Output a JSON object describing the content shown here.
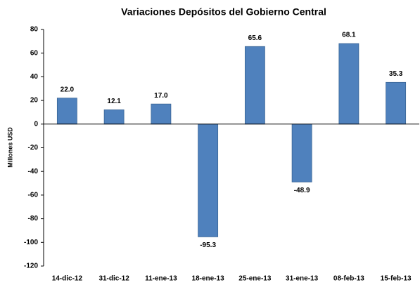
{
  "chart_data": {
    "type": "bar",
    "title": "Variaciones Depósitos del Gobierno Central",
    "y_label": "Millones USD",
    "categories": [
      "14-dic-12",
      "31-dic-12",
      "11-ene-13",
      "18-ene-13",
      "25-ene-13",
      "31-ene-13",
      "08-feb-13",
      "15-feb-13"
    ],
    "values": [
      22,
      12.1,
      17,
      -95.3,
      65.6,
      -48.9,
      68.1,
      35.3
    ],
    "value_labels": [
      "22.0",
      "12.1",
      "17.0",
      "-95.3",
      "65.6",
      "-48.9",
      "68.1",
      "35.3"
    ],
    "color": "#4f81bd",
    "ylim": [
      -120,
      80
    ],
    "yticks": [
      -120,
      -100,
      -80,
      -60,
      -40,
      -20,
      0,
      20,
      40,
      60,
      80
    ],
    "grid": false
  }
}
